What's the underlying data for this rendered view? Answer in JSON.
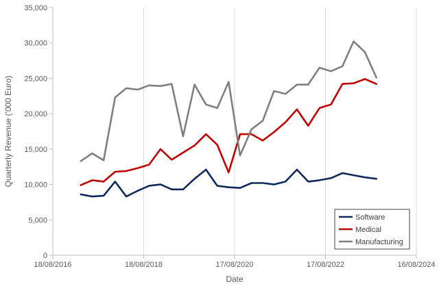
{
  "chart_data": {
    "type": "line",
    "xlabel": "Date",
    "ylabel": "Quarterly Revenue ('000 Euro)",
    "ylim": [
      0,
      35000
    ],
    "y_ticks": [
      0,
      5000,
      10000,
      15000,
      20000,
      25000,
      30000,
      35000
    ],
    "y_tick_labels": [
      "0",
      "5,000",
      "10,000",
      "15,000",
      "20,000",
      "25,000",
      "30,000",
      "35,000"
    ],
    "xlim": [
      "2016-08-18",
      "2024-08-16"
    ],
    "x_ticks": [
      "2016-08-18",
      "2018-08-18",
      "2020-08-17",
      "2022-08-17",
      "2024-08-16"
    ],
    "x_tick_labels": [
      "18/08/2016",
      "18/08/2018",
      "17/08/2020",
      "17/08/2022",
      "16/08/2024"
    ],
    "grid": "vertical-major",
    "legend": "bottom-right",
    "x": [
      "2017-03-31",
      "2017-06-30",
      "2017-09-30",
      "2017-12-31",
      "2018-03-31",
      "2018-06-30",
      "2018-09-30",
      "2018-12-31",
      "2019-03-31",
      "2019-06-30",
      "2019-09-30",
      "2019-12-31",
      "2020-03-31",
      "2020-06-30",
      "2020-09-30",
      "2020-12-31",
      "2021-03-31",
      "2021-06-30",
      "2021-09-30",
      "2021-12-31",
      "2022-03-31",
      "2022-06-30",
      "2022-09-30",
      "2022-12-31",
      "2023-03-31",
      "2023-06-30",
      "2023-09-30",
      "2023-12-31"
    ],
    "series": [
      {
        "name": "Software",
        "color": "#0f2a5a",
        "values": [
          8600,
          8300,
          8400,
          10400,
          8300,
          9100,
          9800,
          10000,
          9300,
          9300,
          10800,
          12100,
          9800,
          9600,
          9500,
          10200,
          10200,
          10000,
          10400,
          12100,
          10400,
          10600,
          10900,
          11600,
          11300,
          11000,
          10800,
          null
        ]
      },
      {
        "name": "Medical",
        "color": "#c00000",
        "values": [
          9900,
          10600,
          10400,
          11800,
          11900,
          12300,
          12800,
          15000,
          13500,
          14500,
          15500,
          17100,
          15600,
          11700,
          17100,
          17100,
          16200,
          17400,
          18800,
          20600,
          18300,
          20800,
          21300,
          24200,
          24300,
          24900,
          24200,
          null
        ]
      },
      {
        "name": "Manufacturing",
        "color": "#7f7f7f",
        "values": [
          13300,
          14400,
          13400,
          22300,
          23600,
          23400,
          24000,
          23900,
          24200,
          16800,
          24100,
          21300,
          20800,
          24500,
          14100,
          17800,
          19000,
          23200,
          22800,
          24100,
          24100,
          26500,
          26000,
          26700,
          30200,
          28700,
          25100,
          null
        ]
      }
    ]
  }
}
